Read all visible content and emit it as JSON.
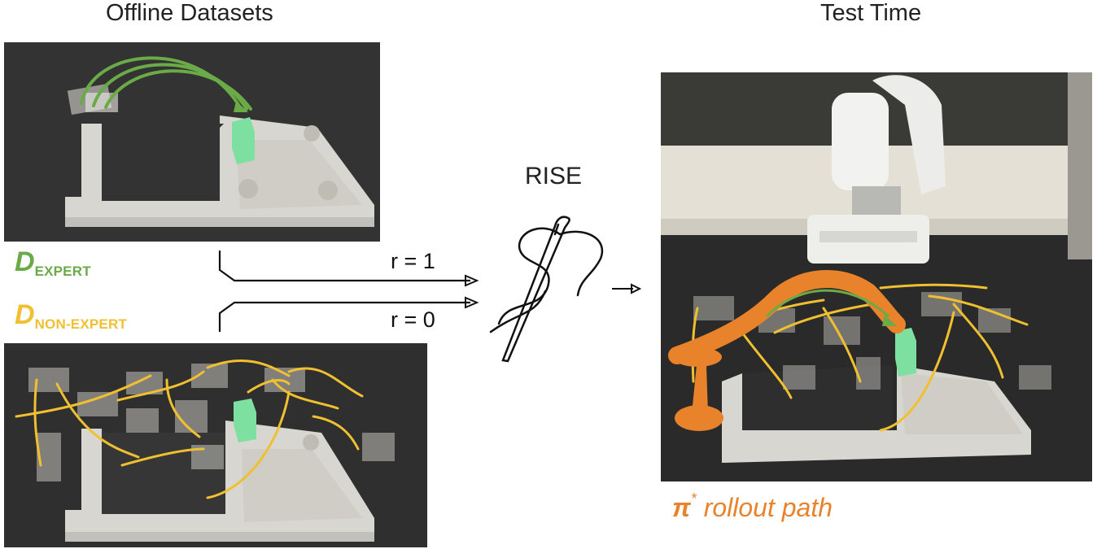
{
  "headings": {
    "left": "Offline Datasets",
    "right": "Test Time"
  },
  "center_label": "RISE",
  "datasets": {
    "expert": {
      "letter": "D",
      "subscript": "EXPERT",
      "reward": "r = 1"
    },
    "nonexpert": {
      "letter": "D",
      "subscript": "NON-EXPERT",
      "reward": "r = 0"
    }
  },
  "rollout": {
    "symbol": "π",
    "star": "*",
    "text": " rollout path"
  },
  "colors": {
    "expert_green": "#6aaa47",
    "nonexpert_yellow": "#f0c030",
    "rollout_orange": "#e8822b",
    "block_green": "#7ee0a0"
  },
  "icons": [
    "needle-thread-icon",
    "arrow-right-icon"
  ]
}
